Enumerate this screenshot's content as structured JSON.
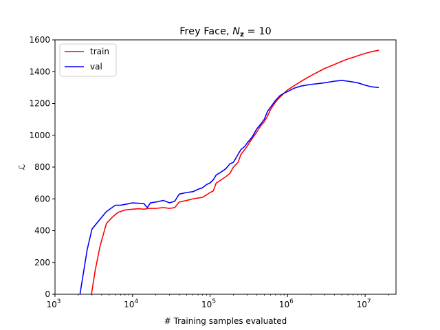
{
  "chart_data": {
    "type": "line",
    "title_main": "Frey Face, ",
    "title_var": "N",
    "title_sub": "z",
    "title_tail": " = 10",
    "xlabel": "# Training samples evaluated",
    "ylabel": "ℒ",
    "xscale": "log",
    "xlim": [
      1000,
      25000000
    ],
    "ylim": [
      0,
      1600
    ],
    "xticks": [
      {
        "value": 1000,
        "base": "10",
        "exp": "3"
      },
      {
        "value": 10000,
        "base": "10",
        "exp": "4"
      },
      {
        "value": 100000,
        "base": "10",
        "exp": "5"
      },
      {
        "value": 1000000,
        "base": "10",
        "exp": "6"
      },
      {
        "value": 10000000,
        "base": "10",
        "exp": "7"
      }
    ],
    "yticks": [
      "0",
      "200",
      "400",
      "600",
      "800",
      "1000",
      "1200",
      "1400",
      "1600"
    ],
    "legend_position": "upper-left",
    "grid": false,
    "series": [
      {
        "name": "train",
        "color": "#ff0000",
        "x": [
          2950,
          3300,
          3800,
          4600,
          5500,
          6500,
          8000,
          10000,
          12000,
          14000,
          16000,
          17500,
          20000,
          25000,
          30000,
          35000,
          40000,
          50000,
          60000,
          70000,
          80000,
          90000,
          100000,
          110000,
          120000,
          140000,
          160000,
          180000,
          200000,
          230000,
          250000,
          280000,
          300000,
          350000,
          400000,
          450000,
          500000,
          550000,
          600000,
          700000,
          800000,
          900000,
          1000000,
          1200000,
          1500000,
          2000000,
          2500000,
          3000000,
          4000000,
          5000000,
          6000000,
          7000000,
          8000000,
          10000000,
          12000000,
          15000000
        ],
        "y": [
          0,
          150,
          300,
          445,
          485,
          515,
          530,
          535,
          538,
          535,
          540,
          540,
          540,
          545,
          540,
          545,
          580,
          590,
          600,
          605,
          610,
          625,
          640,
          650,
          700,
          720,
          740,
          760,
          800,
          830,
          880,
          910,
          930,
          980,
          1020,
          1060,
          1085,
          1120,
          1160,
          1210,
          1240,
          1265,
          1285,
          1310,
          1340,
          1375,
          1400,
          1420,
          1445,
          1465,
          1480,
          1490,
          1500,
          1515,
          1525,
          1535
        ]
      },
      {
        "name": "val",
        "color": "#0000ff",
        "x": [
          2100,
          2300,
          2600,
          3000,
          3500,
          4600,
          6000,
          7000,
          8000,
          10000,
          12000,
          14000,
          15500,
          17000,
          20000,
          25000,
          30000,
          35000,
          40000,
          50000,
          60000,
          70000,
          80000,
          90000,
          100000,
          110000,
          120000,
          140000,
          160000,
          180000,
          200000,
          230000,
          250000,
          280000,
          300000,
          350000,
          400000,
          450000,
          500000,
          550000,
          600000,
          700000,
          800000,
          900000,
          1000000,
          1200000,
          1500000,
          2000000,
          2500000,
          3000000,
          4000000,
          5000000,
          6000000,
          7000000,
          8000000,
          10000000,
          12000000,
          15000000
        ],
        "y": [
          0,
          120,
          280,
          410,
          450,
          520,
          560,
          560,
          565,
          575,
          572,
          570,
          545,
          575,
          580,
          590,
          575,
          585,
          630,
          640,
          645,
          660,
          670,
          690,
          700,
          720,
          750,
          770,
          790,
          820,
          830,
          880,
          910,
          930,
          950,
          990,
          1040,
          1070,
          1100,
          1150,
          1175,
          1220,
          1250,
          1265,
          1275,
          1295,
          1310,
          1320,
          1325,
          1330,
          1340,
          1345,
          1340,
          1335,
          1330,
          1315,
          1305,
          1300
        ]
      }
    ]
  }
}
